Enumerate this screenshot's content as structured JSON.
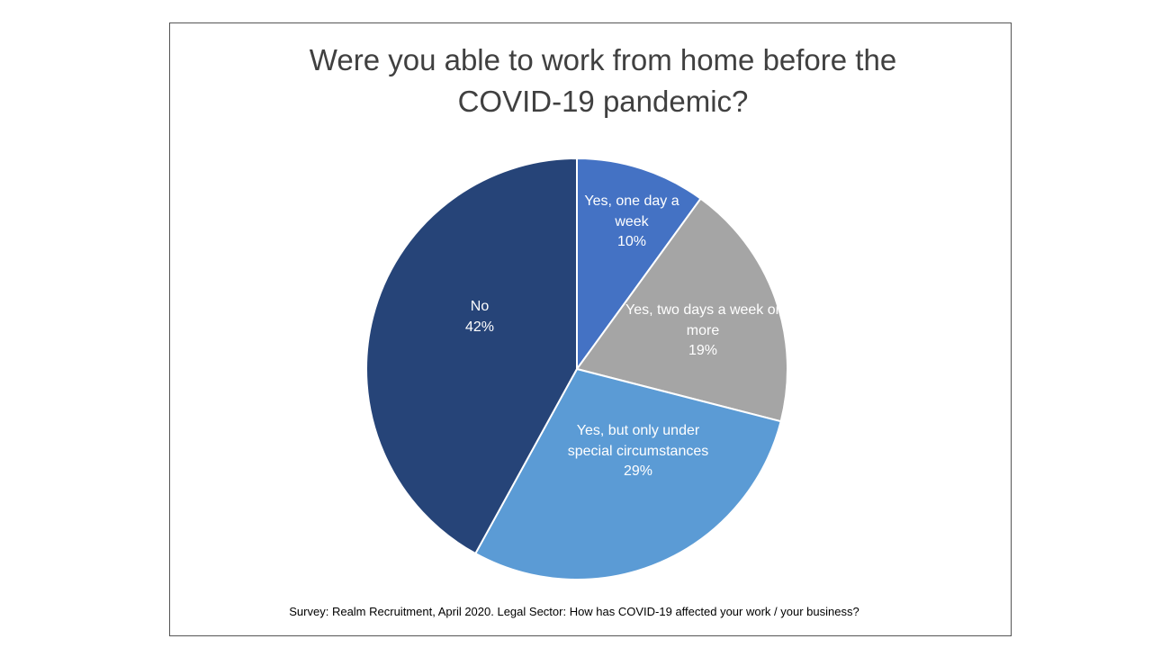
{
  "chart_data": {
    "type": "pie",
    "title": "Were you able to work from home before the COVID-19 pandemic?",
    "categories": [
      "Yes, one day a week",
      "Yes, two days a week or more",
      "Yes, but only under special circumstances",
      "No"
    ],
    "values": [
      10,
      19,
      29,
      42
    ],
    "value_labels": [
      "10%",
      "19%",
      "29%",
      "42%"
    ],
    "colors": [
      "#4472c4",
      "#a5a5a5",
      "#5b9bd5",
      "#264478"
    ],
    "source": "Survey: Realm Recruitment, April 2020. Legal Sector: How has COVID-19 affected your work / your business?"
  }
}
